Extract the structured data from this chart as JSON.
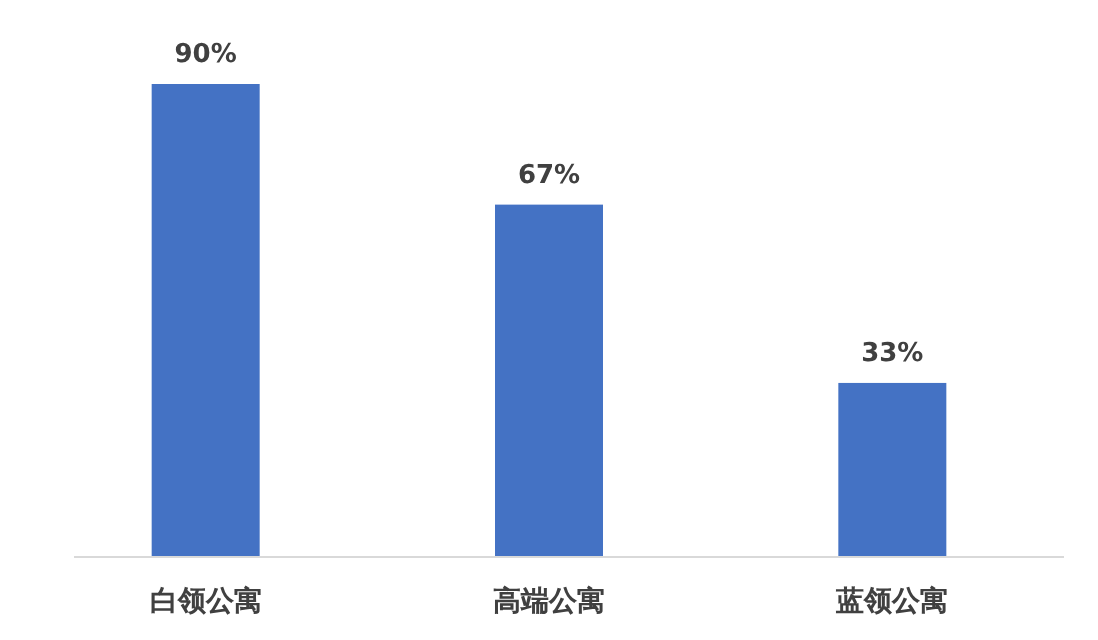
{
  "chart_data": {
    "type": "bar",
    "categories": [
      "白领公寓",
      "高端公寓",
      "蓝领公寓"
    ],
    "values": [
      90,
      67,
      33
    ],
    "value_labels": [
      "90%",
      "67%",
      "33%"
    ],
    "color": "#4472c4"
  }
}
